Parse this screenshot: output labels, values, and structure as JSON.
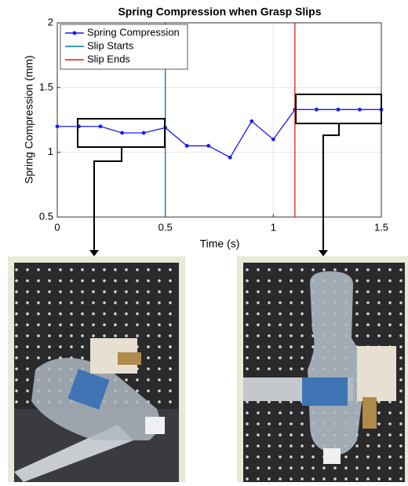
{
  "chart_data": {
    "type": "line",
    "title": "Spring Compression when Grasp Slips",
    "xlabel": "Time (s)",
    "ylabel": "Spring Compression (mm)",
    "x": [
      0,
      0.1,
      0.2,
      0.3,
      0.4,
      0.5,
      0.6,
      0.7,
      0.8,
      0.9,
      1.0,
      1.1,
      1.2,
      1.3,
      1.4,
      1.5
    ],
    "series": [
      {
        "name": "Spring Compression",
        "color": "#1a1aff",
        "values": [
          1.2,
          1.2,
          1.2,
          1.15,
          1.15,
          1.19,
          1.05,
          1.05,
          0.96,
          1.24,
          1.1,
          1.33,
          1.33,
          1.33,
          1.33,
          1.33
        ]
      },
      {
        "name": "Slip Starts",
        "color": "#0072bd",
        "x": 0.5
      },
      {
        "name": "Slip Ends",
        "color": "#e8191b",
        "x": 1.1
      }
    ],
    "xlim": [
      0,
      1.5
    ],
    "xticks": [
      0,
      0.5,
      1,
      1.5
    ],
    "ylim": [
      0.5,
      2
    ],
    "yticks": [
      0.5,
      1,
      1.5,
      2
    ],
    "grid": true,
    "legend": "upper-left"
  }
}
